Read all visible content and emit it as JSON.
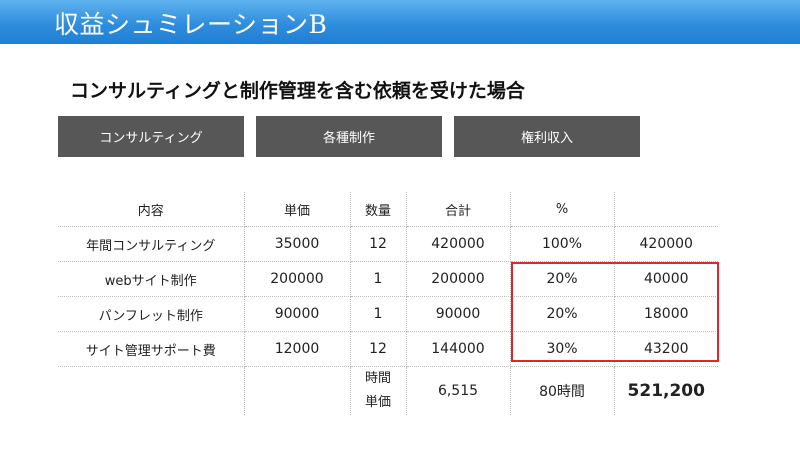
{
  "header": {
    "title": "収益シュミレーションB"
  },
  "subtitle": "コンサルティングと制作管理を含む依頼を受けた場合",
  "tabs": [
    "コンサルティング",
    "各種制作",
    "権利収入"
  ],
  "table": {
    "headers": [
      "内容",
      "単価",
      "数量",
      "合計",
      "%",
      ""
    ],
    "rows": [
      [
        "年間コンサルティング",
        "35000",
        "12",
        "420000",
        "100%",
        "420000"
      ],
      [
        "webサイト制作",
        "200000",
        "1",
        "200000",
        "20%",
        "40000"
      ],
      [
        "パンフレット制作",
        "90000",
        "1",
        "90000",
        "20%",
        "18000"
      ],
      [
        "サイト管理サポート費",
        "12000",
        "12",
        "144000",
        "30%",
        "43200"
      ]
    ],
    "total": {
      "hourly_label_1": "時間",
      "hourly_label_2": "単価",
      "hourly_value": "6,515",
      "hours": "80時間",
      "sum": "521,200"
    }
  },
  "colors": {
    "header": "#2f8ddd",
    "tab": "#575757",
    "highlight": "#e0262b"
  }
}
